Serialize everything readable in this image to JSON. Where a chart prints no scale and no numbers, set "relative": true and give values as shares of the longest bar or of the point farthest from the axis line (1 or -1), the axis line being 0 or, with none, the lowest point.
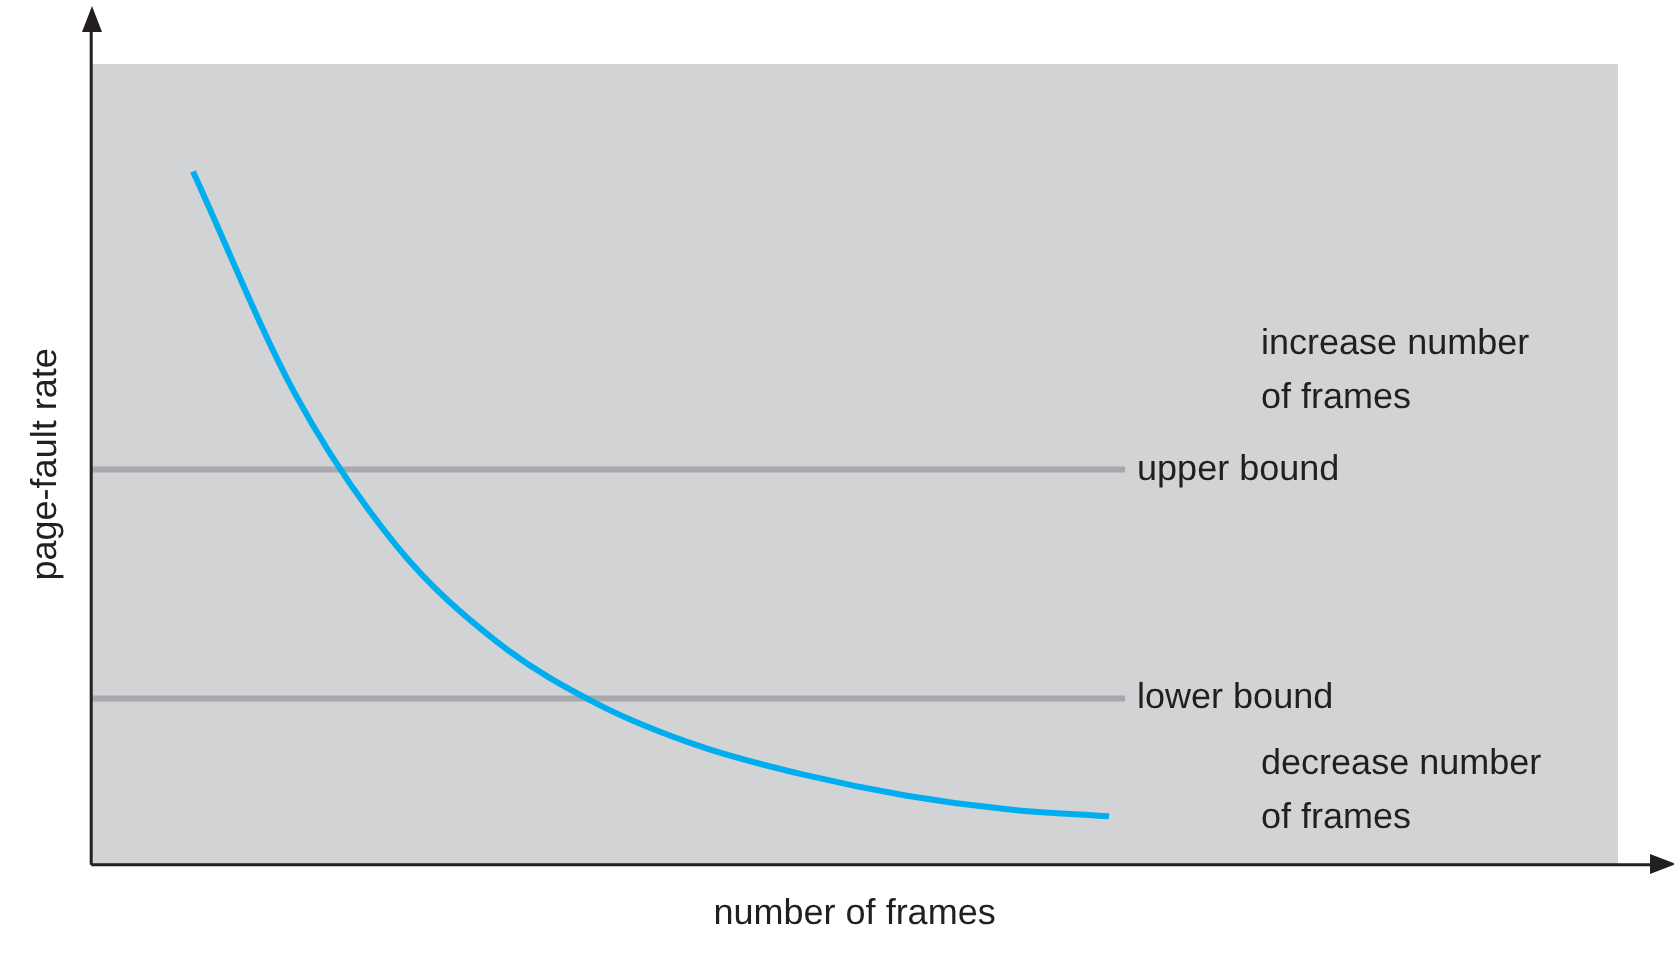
{
  "chart_data": {
    "type": "line",
    "relative": true,
    "xlabel": "number of frames",
    "ylabel": "page-fault rate",
    "categories": [
      null,
      null,
      null,
      null,
      null,
      null,
      null,
      null,
      null,
      null,
      null,
      null,
      null,
      null,
      null,
      null
    ],
    "series": [
      {
        "color": "#00aeef",
        "values": [
          null,
          1,
          0.68,
          0.46,
          0.32,
          0.23,
          0.17,
          0.13,
          0.1,
          0.08,
          0.07,
          null,
          null,
          null,
          null,
          null
        ]
      }
    ],
    "ref_lines": [
      {
        "axis": "y",
        "value": 0.57,
        "label": "upper bound",
        "color": "#a7a9ac"
      },
      {
        "axis": "y",
        "value": 0.24,
        "label": "lower bound",
        "color": "#a7a9ac"
      }
    ],
    "annotations": [
      "increase number of frames",
      "decrease number of frames"
    ],
    "grid": false,
    "legend": false,
    "marker": "none",
    "line_style": "solid"
  }
}
